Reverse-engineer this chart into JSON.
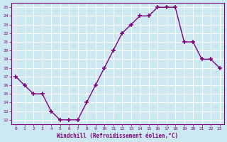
{
  "x": [
    0,
    1,
    2,
    3,
    4,
    5,
    6,
    7,
    8,
    9,
    10,
    11,
    12,
    13,
    14,
    15,
    16,
    17,
    18,
    19,
    20,
    21,
    22,
    23
  ],
  "y": [
    17,
    16,
    15,
    15,
    13,
    12,
    12,
    12,
    14,
    16,
    18,
    20,
    22,
    23,
    24,
    24,
    25,
    25,
    25,
    21,
    21,
    19,
    19,
    18
  ],
  "xlim": [
    -0.5,
    23.5
  ],
  "ylim": [
    11.5,
    25.5
  ],
  "yticks": [
    12,
    13,
    14,
    15,
    16,
    17,
    18,
    19,
    20,
    21,
    22,
    23,
    24,
    25
  ],
  "xticks": [
    0,
    1,
    2,
    3,
    4,
    5,
    6,
    7,
    8,
    9,
    10,
    11,
    12,
    13,
    14,
    15,
    16,
    17,
    18,
    19,
    20,
    21,
    22,
    23
  ],
  "xlabel": "Windchill (Refroidissement éolien,°C)",
  "line_color": "#800080",
  "marker": "+",
  "background_color": "#cce8f0",
  "grid_color": "#ffffff",
  "tick_color": "#800080",
  "label_color": "#800080"
}
